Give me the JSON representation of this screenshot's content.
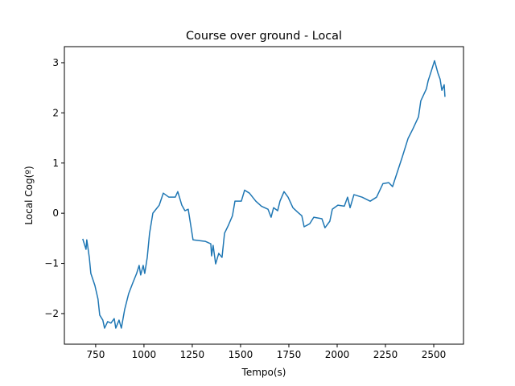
{
  "chart_data": {
    "type": "line",
    "title": "Course over ground - Local",
    "xlabel": "Tempo(s)",
    "ylabel": "Local Cog(º)",
    "x": [
      683,
      700,
      704,
      717,
      725,
      746,
      762,
      771,
      787,
      796,
      812,
      829,
      846,
      854,
      871,
      883,
      900,
      921,
      942,
      962,
      975,
      983,
      996,
      1004,
      1017,
      1029,
      1046,
      1079,
      1100,
      1129,
      1162,
      1175,
      1196,
      1212,
      1229,
      1254,
      1317,
      1346,
      1350,
      1358,
      1371,
      1387,
      1404,
      1417,
      1437,
      1458,
      1471,
      1504,
      1521,
      1546,
      1579,
      1608,
      1642,
      1658,
      1671,
      1692,
      1704,
      1725,
      1746,
      1771,
      1796,
      1817,
      1829,
      1858,
      1879,
      1921,
      1937,
      1962,
      1975,
      2004,
      2037,
      2054,
      2067,
      2087,
      2129,
      2171,
      2204,
      2237,
      2267,
      2287,
      2296,
      2337,
      2367,
      2392,
      2421,
      2433,
      2462,
      2471,
      2487,
      2504,
      2521,
      2533,
      2542,
      2554,
      2558
    ],
    "series": [
      {
        "name": "Local Cog",
        "color": "#1f77b4",
        "values": [
          -0.51,
          -0.72,
          -0.53,
          -0.88,
          -1.2,
          -1.44,
          -1.71,
          -2.03,
          -2.13,
          -2.29,
          -2.16,
          -2.19,
          -2.1,
          -2.29,
          -2.13,
          -2.29,
          -1.92,
          -1.6,
          -1.39,
          -1.2,
          -1.04,
          -1.23,
          -1.04,
          -1.2,
          -0.88,
          -0.4,
          0,
          0.16,
          0.4,
          0.32,
          0.32,
          0.43,
          0.16,
          0.05,
          0.08,
          -0.53,
          -0.56,
          -0.61,
          -0.85,
          -0.64,
          -1.01,
          -0.8,
          -0.88,
          -0.4,
          -0.24,
          -0.05,
          0.24,
          0.24,
          0.46,
          0.4,
          0.24,
          0.14,
          0.08,
          -0.08,
          0.11,
          0.05,
          0.24,
          0.43,
          0.32,
          0.11,
          0.02,
          -0.05,
          -0.27,
          -0.21,
          -0.08,
          -0.11,
          -0.29,
          -0.16,
          0.08,
          0.16,
          0.14,
          0.32,
          0.11,
          0.37,
          0.32,
          0.24,
          0.32,
          0.59,
          0.61,
          0.53,
          0.64,
          1.12,
          1.49,
          1.68,
          1.92,
          2.24,
          2.48,
          2.64,
          2.83,
          3.04,
          2.8,
          2.67,
          2.45,
          2.56,
          2.32
        ]
      }
    ],
    "xlim": [
      588,
      2654
    ],
    "xticks": [
      750,
      1000,
      1250,
      1500,
      1750,
      2000,
      2250,
      2500
    ],
    "ylim": [
      -2.61,
      3.32
    ],
    "yticks": [
      {
        "value": -2,
        "label": "−2"
      },
      {
        "value": -1,
        "label": "−1"
      },
      0,
      1,
      2,
      3
    ]
  }
}
